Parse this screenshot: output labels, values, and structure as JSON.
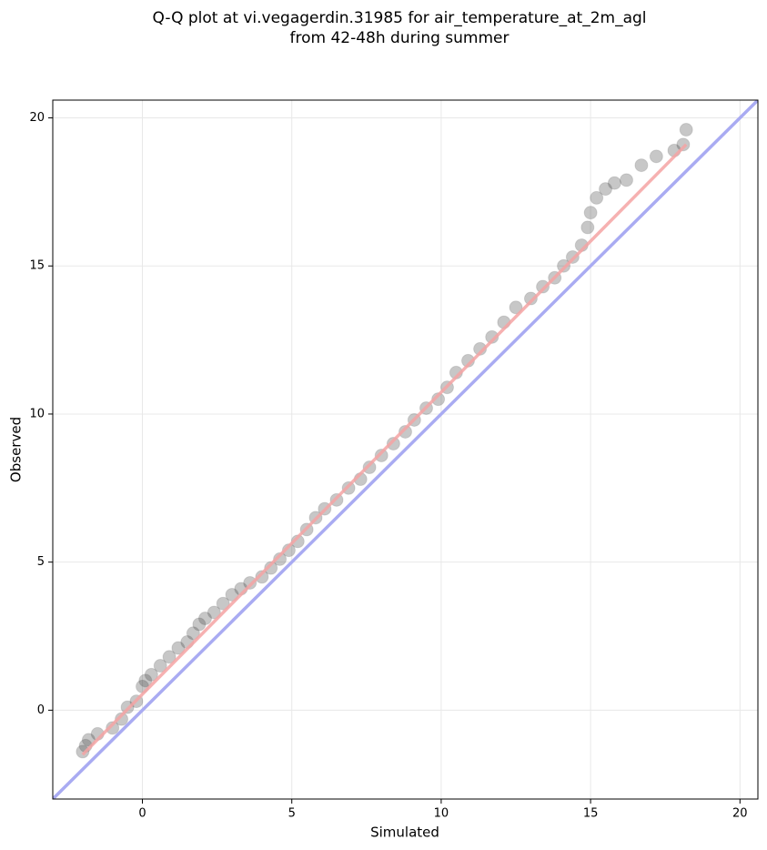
{
  "chart_data": {
    "type": "scatter",
    "title": [
      "Q-Q plot at vi.vegagerdin.31985 for air_temperature_at_2m_agl",
      "from 42-48h during summer"
    ],
    "x_label": "Simulated",
    "y_label": "Observed",
    "xlim": [
      -3,
      20.6
    ],
    "ylim": [
      -3,
      20.6
    ],
    "xticks": [
      0,
      5,
      10,
      15,
      20
    ],
    "yticks": [
      0,
      5,
      10,
      15,
      20
    ],
    "grid": true,
    "color": "#444444",
    "x": [
      -2.0,
      -1.9,
      -1.8,
      -1.5,
      -1.0,
      -0.7,
      -0.5,
      -0.2,
      0,
      0.1,
      0.3,
      0.6,
      0.9,
      1.2,
      1.5,
      1.7,
      1.9,
      2.1,
      2.4,
      2.7,
      3.0,
      3.3,
      3.6,
      4.0,
      4.3,
      4.6,
      4.9,
      5.2,
      5.5,
      5.8,
      6.1,
      6.5,
      6.9,
      7.3,
      7.6,
      8.0,
      8.4,
      8.8,
      9.1,
      9.5,
      9.9,
      10.2,
      10.5,
      10.9,
      11.3,
      11.7,
      12.1,
      12.5,
      13.0,
      13.4,
      13.8,
      14.1,
      14.4,
      14.7,
      14.9,
      15.0,
      15.2,
      15.5,
      15.8,
      16.2,
      16.7,
      17.2,
      17.8,
      18.1,
      18.2
    ],
    "values": [
      -1.4,
      -1.2,
      -1.0,
      -0.8,
      -0.6,
      -0.3,
      0.1,
      0.3,
      0.8,
      1.0,
      1.2,
      1.5,
      1.8,
      2.1,
      2.3,
      2.6,
      2.9,
      3.1,
      3.3,
      3.6,
      3.9,
      4.1,
      4.3,
      4.5,
      4.8,
      5.1,
      5.4,
      5.7,
      6.1,
      6.5,
      6.8,
      7.1,
      7.5,
      7.8,
      8.2,
      8.6,
      9.0,
      9.4,
      9.8,
      10.2,
      10.5,
      10.9,
      11.4,
      11.8,
      12.2,
      12.6,
      13.1,
      13.6,
      13.9,
      14.3,
      14.6,
      15.0,
      15.3,
      15.7,
      16.3,
      16.8,
      17.3,
      17.6,
      17.8,
      17.9,
      18.4,
      18.7,
      18.9,
      19.1,
      19.6
    ],
    "lines": [
      {
        "color": "#a9abf2",
        "x": [
          -3,
          20.6
        ],
        "values": [
          -3,
          20.6
        ]
      },
      {
        "color": "#f4a3a3",
        "x": [
          -2.0,
          18.2
        ],
        "values": [
          -1.5,
          19.1
        ]
      }
    ]
  }
}
